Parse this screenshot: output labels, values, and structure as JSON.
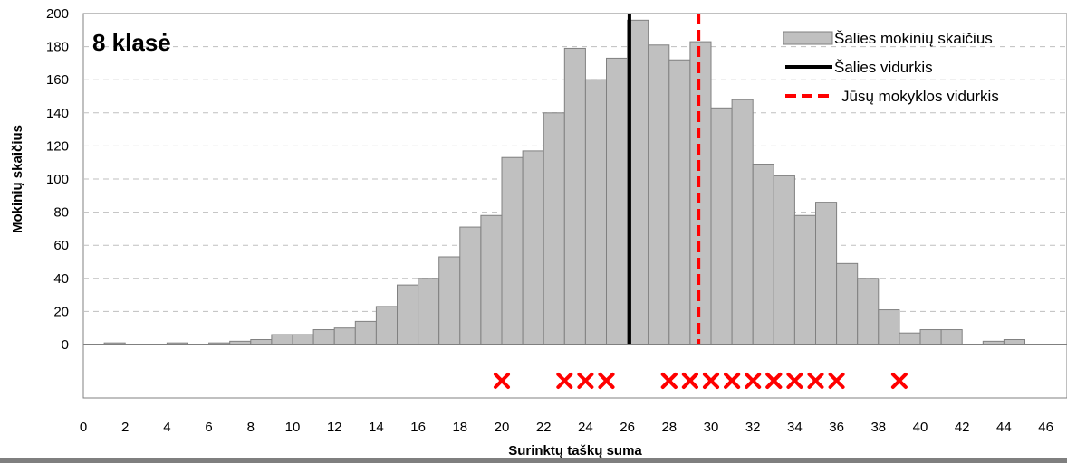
{
  "panel_label": "8 klasė",
  "chart_data": {
    "type": "bar",
    "xlabel": "Surinktų taškų suma",
    "ylabel": "Mokinių skaičius",
    "xlim": [
      0,
      47
    ],
    "ylim": [
      0,
      200
    ],
    "x_ticks": [
      0,
      2,
      4,
      6,
      8,
      10,
      12,
      14,
      16,
      18,
      20,
      22,
      24,
      26,
      28,
      30,
      32,
      34,
      36,
      38,
      40,
      42,
      44,
      46
    ],
    "y_ticks": [
      0,
      20,
      40,
      60,
      80,
      100,
      120,
      140,
      160,
      180,
      200
    ],
    "grid": "horizontal dashed",
    "legend_position": "top-right",
    "series": [
      {
        "name": "Šalies mokinių skaičius",
        "type": "histogram",
        "color": "#c0c0c0",
        "x": [
          0,
          1,
          2,
          3,
          4,
          5,
          6,
          7,
          8,
          9,
          10,
          11,
          12,
          13,
          14,
          15,
          16,
          17,
          18,
          19,
          20,
          21,
          22,
          23,
          24,
          25,
          26,
          27,
          28,
          29,
          30,
          31,
          32,
          33,
          34,
          35,
          36,
          37,
          38,
          39,
          40,
          41,
          42,
          43,
          44,
          45,
          46
        ],
        "values": [
          0,
          1,
          0,
          0,
          1,
          0,
          1,
          2,
          3,
          6,
          6,
          9,
          10,
          14,
          23,
          36,
          40,
          53,
          71,
          78,
          113,
          117,
          140,
          179,
          160,
          173,
          196,
          181,
          172,
          183,
          143,
          148,
          109,
          102,
          78,
          86,
          49,
          40,
          21,
          7,
          9,
          9,
          0,
          2,
          3,
          0,
          0
        ]
      },
      {
        "name": "Šalies vidurkis",
        "type": "vline",
        "color": "#000000",
        "x": 26.1
      },
      {
        "name": "Jūsų mokyklos vidurkis",
        "type": "vline",
        "style": "dashed",
        "color": "#ff0000",
        "x": 29.4
      },
      {
        "type": "markers",
        "marker": "x",
        "color": "#ff0000",
        "x": [
          20,
          23,
          24,
          25,
          25,
          28,
          28,
          29,
          29,
          30,
          30,
          31,
          31,
          32,
          33,
          33,
          34,
          35,
          36,
          39
        ]
      }
    ]
  }
}
